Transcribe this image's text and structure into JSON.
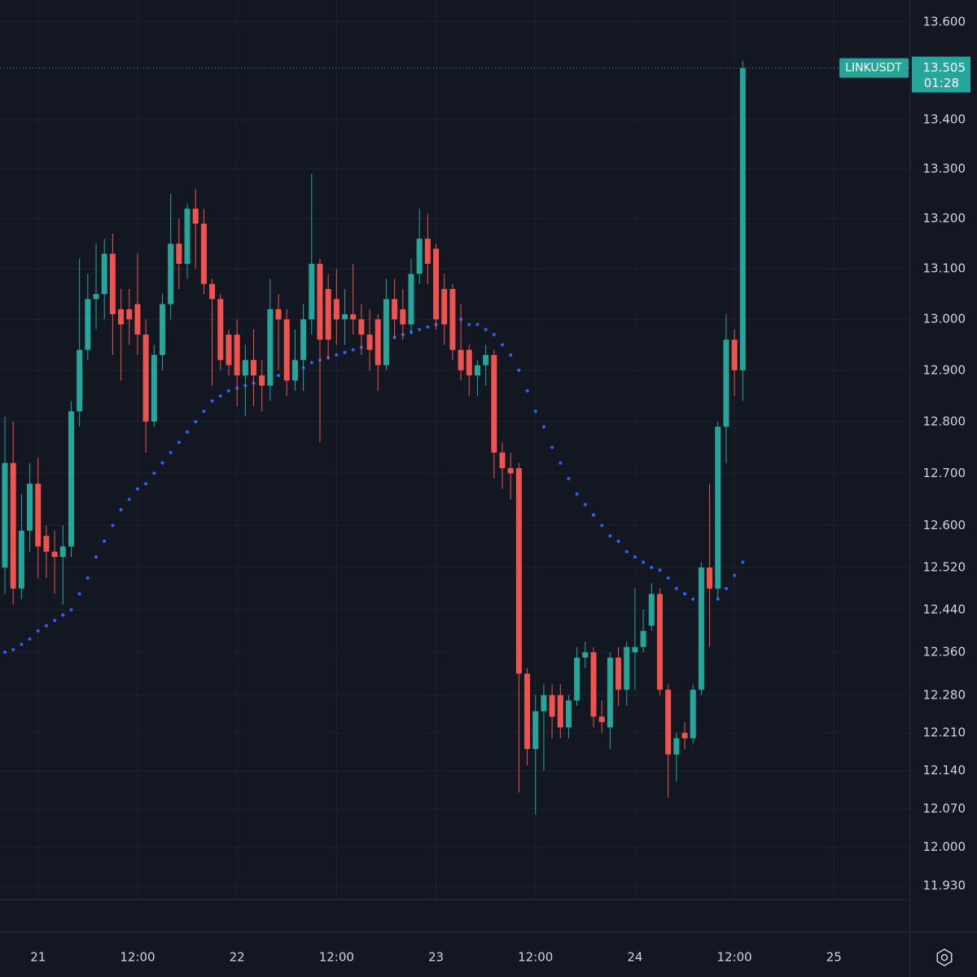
{
  "chart_data": {
    "type": "candlestick",
    "log": true,
    "grid": true,
    "up_color": "#26a69a",
    "down_color": "#ef5350",
    "ylim": [
      11.905,
      13.645
    ],
    "yticks": [
      {
        "value": 13.6,
        "label": "13.600"
      },
      {
        "value": 13.4,
        "label": "13.400"
      },
      {
        "value": 13.3,
        "label": "13.300"
      },
      {
        "value": 13.2,
        "label": "13.200"
      },
      {
        "value": 13.1,
        "label": "13.100"
      },
      {
        "value": 13.0,
        "label": "13.000"
      },
      {
        "value": 12.9,
        "label": "12.900"
      },
      {
        "value": 12.8,
        "label": "12.800"
      },
      {
        "value": 12.7,
        "label": "12.700"
      },
      {
        "value": 12.6,
        "label": "12.600"
      },
      {
        "value": 12.52,
        "label": "12.520"
      },
      {
        "value": 12.44,
        "label": "12.440"
      },
      {
        "value": 12.36,
        "label": "12.360"
      },
      {
        "value": 12.28,
        "label": "12.280"
      },
      {
        "value": 12.21,
        "label": "12.210"
      },
      {
        "value": 12.14,
        "label": "12.140"
      },
      {
        "value": 12.07,
        "label": "12.070"
      },
      {
        "value": 12,
        "label": "12.000"
      },
      {
        "value": 11.93,
        "label": "11.930"
      }
    ],
    "xlim": [
      -0.59,
      109.2
    ],
    "xticks": [
      {
        "value": 4,
        "label": "21"
      },
      {
        "value": 16,
        "label": "12:00"
      },
      {
        "value": 28,
        "label": "22"
      },
      {
        "value": 40,
        "label": "12:00"
      },
      {
        "value": 52,
        "label": "23"
      },
      {
        "value": 64,
        "label": "12:00"
      },
      {
        "value": 76,
        "label": "24"
      },
      {
        "value": 88,
        "label": "12:00"
      },
      {
        "value": 100,
        "label": "25"
      }
    ],
    "series": [
      {
        "name": "LINKUSDT",
        "open": [
          12.52,
          12.72,
          12.48,
          12.59,
          12.68,
          12.58,
          12.55,
          12.54,
          12.56,
          12.82,
          12.94,
          13.04,
          13.05,
          13.13,
          13.02,
          13.02,
          13.03,
          12.97,
          12.8,
          12.93,
          13.03,
          13.15,
          13.11,
          13.22,
          13.19,
          13.07,
          13.04,
          12.97,
          12.97,
          12.89,
          12.92,
          12.89,
          12.87,
          13.02,
          13.0,
          12.88,
          12.92,
          13.0,
          13.11,
          13.06,
          13.04,
          13.0,
          13.01,
          13.0,
          12.97,
          13.0,
          12.91,
          13.04,
          13.02,
          12.99,
          13.09,
          13.16,
          13.14,
          13.06,
          13.06,
          12.94,
          12.94,
          12.89,
          12.91,
          12.93,
          12.74,
          12.71,
          12.71,
          12.32,
          12.18,
          12.25,
          12.28,
          12.28,
          12.22,
          12.27,
          12.35,
          12.36,
          12.24,
          12.22,
          12.35,
          12.29,
          12.36,
          12.37,
          12.41,
          12.47,
          12.29,
          12.17,
          12.21,
          12.2,
          12.29,
          12.52,
          12.48,
          12.79,
          12.96,
          12.9
        ],
        "high": [
          12.81,
          12.8,
          12.66,
          12.72,
          12.73,
          12.6,
          12.59,
          12.6,
          12.84,
          13.12,
          13.09,
          13.15,
          13.16,
          13.17,
          13.06,
          13.06,
          13.13,
          13.0,
          12.95,
          13.05,
          13.25,
          13.2,
          13.23,
          13.26,
          13.22,
          13.08,
          13.05,
          12.98,
          13.0,
          12.95,
          12.98,
          12.92,
          13.08,
          13.05,
          13.02,
          12.98,
          13.03,
          13.29,
          13.12,
          13.09,
          13.1,
          13.06,
          13.11,
          13.03,
          13.02,
          13.01,
          13.08,
          13.08,
          13.06,
          13.12,
          13.22,
          13.21,
          13.15,
          13.09,
          13.07,
          13.03,
          12.95,
          12.92,
          12.95,
          12.94,
          12.76,
          12.74,
          12.72,
          12.33,
          12.28,
          12.3,
          12.3,
          12.3,
          12.28,
          12.37,
          12.38,
          12.37,
          12.27,
          12.36,
          12.37,
          12.38,
          12.48,
          12.44,
          12.49,
          12.48,
          12.3,
          12.21,
          12.23,
          12.3,
          12.53,
          12.68,
          12.8,
          13.01,
          12.98,
          13.52
        ],
        "low": [
          12.47,
          12.45,
          12.46,
          12.55,
          12.5,
          12.5,
          12.47,
          12.45,
          12.54,
          12.79,
          12.92,
          12.98,
          13.0,
          12.93,
          12.88,
          12.95,
          12.93,
          12.74,
          12.79,
          12.9,
          13.0,
          13.06,
          13.08,
          13.1,
          13.05,
          12.87,
          12.9,
          12.89,
          12.83,
          12.81,
          12.83,
          12.82,
          12.84,
          12.9,
          12.85,
          12.86,
          12.86,
          12.97,
          12.76,
          12.92,
          12.95,
          12.95,
          12.97,
          12.93,
          12.9,
          12.86,
          12.9,
          12.96,
          12.96,
          12.97,
          13.07,
          13.07,
          12.98,
          12.95,
          12.92,
          12.88,
          12.85,
          12.85,
          12.87,
          12.69,
          12.67,
          12.65,
          12.1,
          12.15,
          12.06,
          12.14,
          12.2,
          12.2,
          12.2,
          12.26,
          12.33,
          12.22,
          12.21,
          12.18,
          12.26,
          12.26,
          12.29,
          12.36,
          12.4,
          12.28,
          12.09,
          12.12,
          12.18,
          12.19,
          12.28,
          12.37,
          12.46,
          12.72,
          12.85,
          12.84
        ],
        "close": [
          12.72,
          12.48,
          12.59,
          12.68,
          12.56,
          12.55,
          12.54,
          12.56,
          12.82,
          12.94,
          13.04,
          13.05,
          13.13,
          13.01,
          12.99,
          13.0,
          12.97,
          12.8,
          12.93,
          13.03,
          13.15,
          13.11,
          13.22,
          13.19,
          13.07,
          13.04,
          12.92,
          12.91,
          12.89,
          12.92,
          12.89,
          12.87,
          13.02,
          13.0,
          12.88,
          12.92,
          13.0,
          13.11,
          12.96,
          12.96,
          13.0,
          13.01,
          13.0,
          12.97,
          12.94,
          12.91,
          13.04,
          13.0,
          12.99,
          13.09,
          13.16,
          13.11,
          13.0,
          12.99,
          12.94,
          12.9,
          12.89,
          12.91,
          12.93,
          12.74,
          12.71,
          12.7,
          12.32,
          12.18,
          12.25,
          12.28,
          12.24,
          12.22,
          12.27,
          12.35,
          12.36,
          12.24,
          12.23,
          12.35,
          12.29,
          12.37,
          12.37,
          12.4,
          12.47,
          12.29,
          12.17,
          12.2,
          12.2,
          12.29,
          12.52,
          12.48,
          12.79,
          12.96,
          12.9,
          13.505
        ]
      },
      {
        "name": "SAR",
        "color": "#2962ff",
        "values": [
          12.36,
          12.365,
          12.375,
          12.385,
          12.4,
          12.41,
          12.42,
          12.43,
          12.44,
          12.47,
          12.5,
          12.54,
          12.57,
          12.6,
          12.63,
          12.65,
          12.67,
          12.68,
          12.7,
          12.72,
          12.74,
          12.76,
          12.78,
          12.8,
          12.82,
          12.84,
          12.85,
          12.86,
          12.865,
          12.87,
          12.875,
          12.88,
          12.885,
          12.89,
          12.895,
          12.9,
          12.905,
          12.915,
          12.92,
          12.925,
          12.93,
          12.935,
          12.94,
          12.945,
          12.95,
          12.955,
          12.96,
          12.965,
          12.97,
          12.975,
          12.98,
          12.985,
          12.99,
          null,
          null,
          13.0,
          12.99,
          12.99,
          12.98,
          12.97,
          12.95,
          12.93,
          12.9,
          12.86,
          12.82,
          12.79,
          12.75,
          12.72,
          12.69,
          12.66,
          12.64,
          12.62,
          12.6,
          12.58,
          12.57,
          12.55,
          12.54,
          12.53,
          12.52,
          12.515,
          12.5,
          12.48,
          12.47,
          12.46,
          12.45,
          null,
          12.46,
          12.48,
          12.505,
          12.53
        ]
      }
    ],
    "last_price": {
      "symbol": "LINKUSDT",
      "value": 13.505,
      "label": "13.505",
      "countdown": "01:28"
    }
  }
}
